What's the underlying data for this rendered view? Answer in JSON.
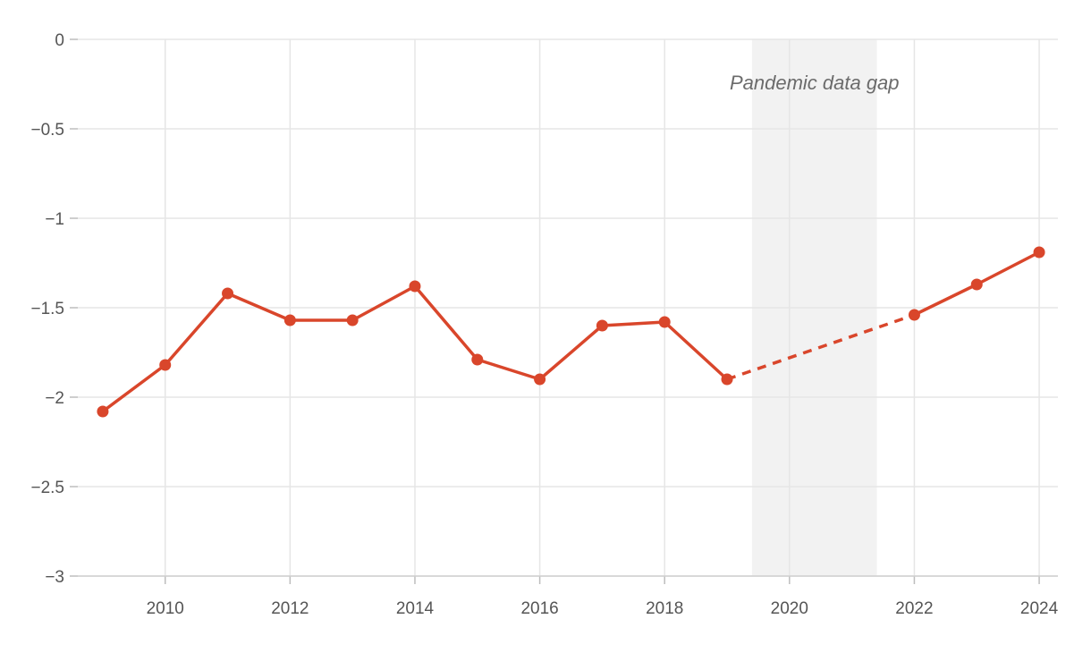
{
  "chart_data": {
    "type": "line",
    "title": "",
    "xlabel": "",
    "ylabel": "",
    "xlim": [
      2008.6,
      2024.3
    ],
    "ylim": [
      -3,
      0
    ],
    "x_ticks": [
      2010,
      2012,
      2014,
      2016,
      2018,
      2020,
      2022,
      2024
    ],
    "x_tick_labels": [
      "2010",
      "2012",
      "2014",
      "2016",
      "2018",
      "2020",
      "2022",
      "2024"
    ],
    "y_ticks": [
      0,
      -0.5,
      -1,
      -1.5,
      -2,
      -2.5,
      -3
    ],
    "y_tick_labels": [
      "0",
      "−0.5",
      "−1",
      "−1.5",
      "−2",
      "−2.5",
      "−3"
    ],
    "grid": true,
    "series": [
      {
        "color": "#d9462b",
        "points": [
          {
            "x": 2009,
            "y": -2.08
          },
          {
            "x": 2010,
            "y": -1.82
          },
          {
            "x": 2011,
            "y": -1.42
          },
          {
            "x": 2012,
            "y": -1.57
          },
          {
            "x": 2013,
            "y": -1.57
          },
          {
            "x": 2014,
            "y": -1.38
          },
          {
            "x": 2015,
            "y": -1.79
          },
          {
            "x": 2016,
            "y": -1.9
          },
          {
            "x": 2017,
            "y": -1.6
          },
          {
            "x": 2018,
            "y": -1.58
          },
          {
            "x": 2019,
            "y": -1.9
          },
          {
            "x": 2022,
            "y": -1.54
          },
          {
            "x": 2023,
            "y": -1.37
          },
          {
            "x": 2024,
            "y": -1.19
          }
        ],
        "gap": {
          "from": 2019,
          "to": 2022,
          "style": "dashed"
        }
      }
    ],
    "shaded_region": {
      "x_start": 2019.4,
      "x_end": 2021.4,
      "color": "#f2f2f2",
      "label": "Pandemic data gap"
    }
  }
}
